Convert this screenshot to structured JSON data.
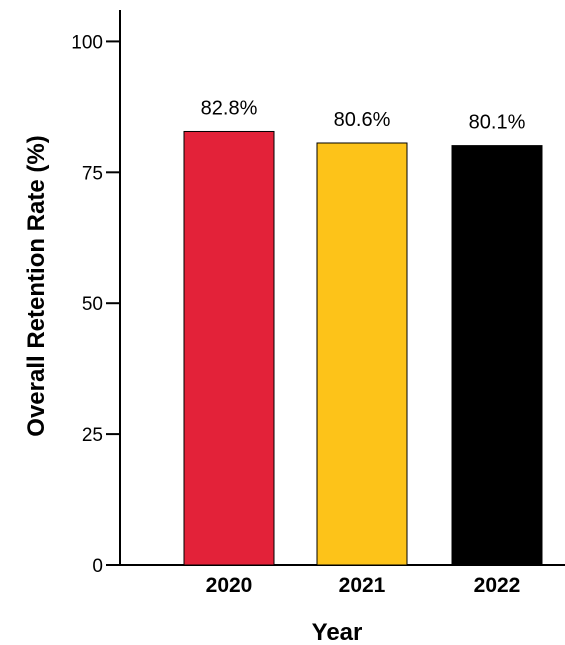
{
  "chart_data": {
    "type": "bar",
    "categories": [
      "2020",
      "2021",
      "2022"
    ],
    "values": [
      82.8,
      80.6,
      80.1
    ],
    "data_labels": [
      "82.8%",
      "80.6%",
      "80.1%"
    ],
    "colors": [
      "#e32239",
      "#fdc319",
      "#000000"
    ],
    "bar_outline": "#000000",
    "xlabel": "Year",
    "ylabel": "Overall Retention Rate (%)",
    "ylim": [
      0,
      106
    ],
    "yticks": [
      0,
      25,
      50,
      75,
      100
    ],
    "ytick_labels": [
      "0",
      "25",
      "50",
      "75",
      "100"
    ],
    "grid": false,
    "legend": "none"
  }
}
